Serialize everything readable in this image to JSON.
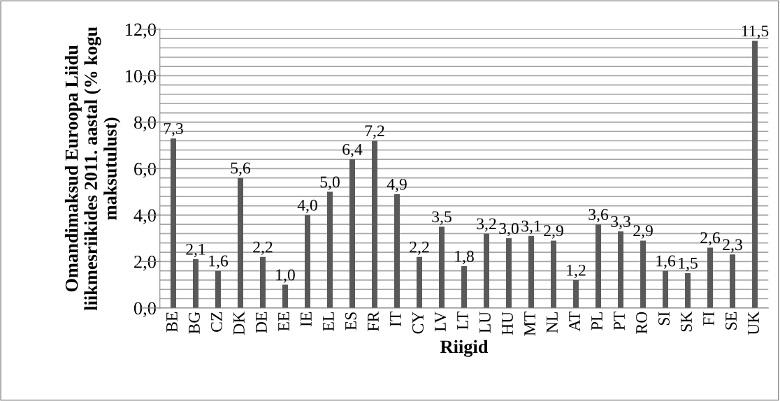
{
  "chart_data": {
    "type": "bar",
    "ylabel": "Omandimaksud Euroopa Liidu liikmesriikides 2011. aastal (% kogu maksutulust)",
    "xlabel": "Riigid",
    "categories": [
      "BE",
      "BG",
      "CZ",
      "DK",
      "DE",
      "EE",
      "IE",
      "EL",
      "ES",
      "FR",
      "IT",
      "CY",
      "LV",
      "LT",
      "LU",
      "HU",
      "MT",
      "NL",
      "AT",
      "PL",
      "PT",
      "RO",
      "SI",
      "SK",
      "FI",
      "SE",
      "UK"
    ],
    "values": [
      7.3,
      2.1,
      1.6,
      5.6,
      2.2,
      1.0,
      4.0,
      5.0,
      6.4,
      7.2,
      4.9,
      2.2,
      3.5,
      1.8,
      3.2,
      3.0,
      3.1,
      2.9,
      1.2,
      3.6,
      3.3,
      2.9,
      1.6,
      1.5,
      2.6,
      2.3,
      11.5
    ],
    "value_labels": [
      "7,3",
      "2,1",
      "1,6",
      "5,6",
      "2,2",
      "1,0",
      "4,0",
      "5,0",
      "6,4",
      "7,2",
      "4,9",
      "2,2",
      "3,5",
      "1,8",
      "3,2",
      "3,0",
      "3,1",
      "2,9",
      "1,2",
      "3,6",
      "3,3",
      "2,9",
      "1,6",
      "1,5",
      "2,6",
      "2,3",
      "11,5"
    ],
    "color": "#595959",
    "ylim": [
      0,
      12
    ],
    "yticks": [
      {
        "value": 0,
        "label": "0,0"
      },
      {
        "value": 0.4,
        "label": null
      },
      {
        "value": 0.8,
        "label": null
      },
      {
        "value": 1.2,
        "label": null
      },
      {
        "value": 1.6,
        "label": null
      },
      {
        "value": 2,
        "label": "2,0"
      },
      {
        "value": 2.4,
        "label": null
      },
      {
        "value": 2.8,
        "label": null
      },
      {
        "value": 3.2,
        "label": null
      },
      {
        "value": 3.6,
        "label": null
      },
      {
        "value": 4,
        "label": "4,0"
      },
      {
        "value": 4.4,
        "label": null
      },
      {
        "value": 4.8,
        "label": null
      },
      {
        "value": 5.2,
        "label": null
      },
      {
        "value": 5.6,
        "label": null
      },
      {
        "value": 6,
        "label": "6,0"
      },
      {
        "value": 6.4,
        "label": null
      },
      {
        "value": 6.8,
        "label": null
      },
      {
        "value": 7.2,
        "label": null
      },
      {
        "value": 7.6,
        "label": null
      },
      {
        "value": 8,
        "label": "8,0"
      },
      {
        "value": 8.4,
        "label": null
      },
      {
        "value": 8.8,
        "label": null
      },
      {
        "value": 9.2,
        "label": null
      },
      {
        "value": 9.6,
        "label": null
      },
      {
        "value": 10,
        "label": "10,0"
      },
      {
        "value": 10.4,
        "label": null
      },
      {
        "value": 10.8,
        "label": null
      },
      {
        "value": 11.2,
        "label": null
      },
      {
        "value": 11.6,
        "label": null
      },
      {
        "value": 12,
        "label": "12,0"
      }
    ],
    "grid": "y"
  }
}
